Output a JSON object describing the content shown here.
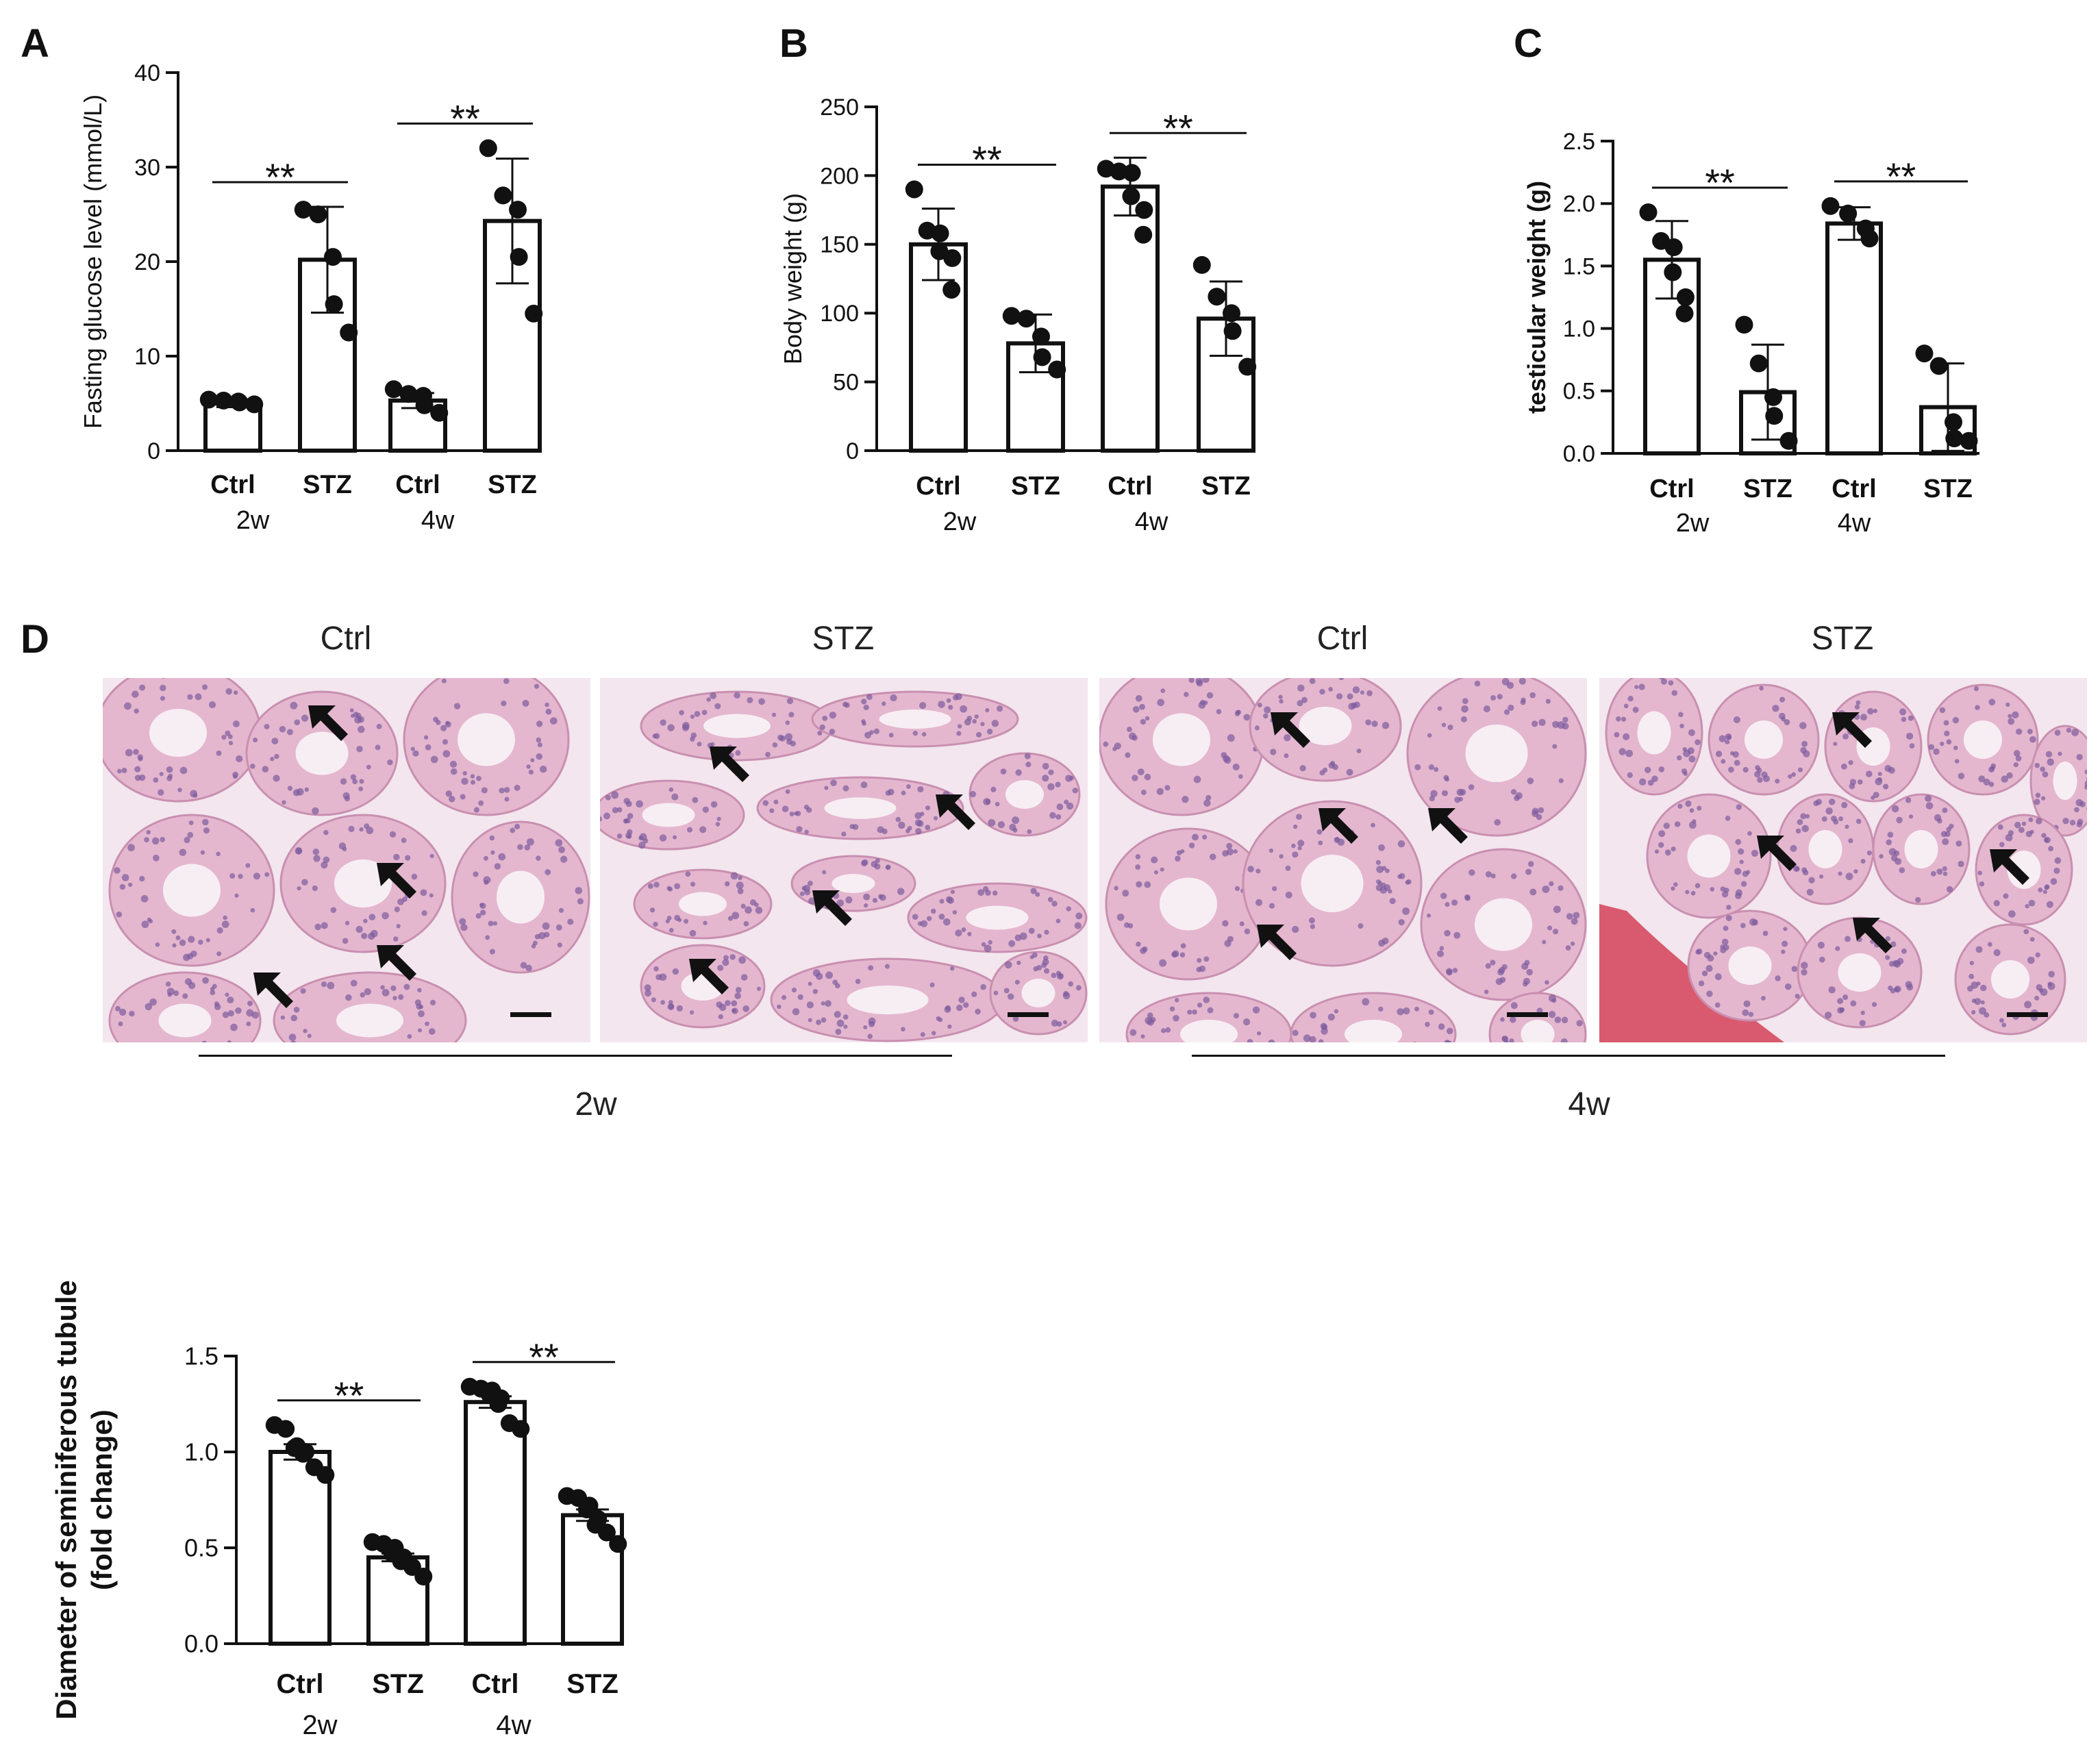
{
  "panels": {
    "A": "A",
    "B": "B",
    "C": "C",
    "D": "D"
  },
  "chart_data": [
    {
      "id": "A",
      "type": "bar",
      "categories": [
        "Ctrl",
        "STZ",
        "Ctrl",
        "STZ"
      ],
      "groups": [
        "2w",
        "4w"
      ],
      "ylabel": "Fasting glucose level (mmol/L)",
      "ylim": [
        0,
        40
      ],
      "yticks": [
        0,
        10,
        20,
        30,
        40
      ],
      "means": [
        5.0,
        20.2,
        5.3,
        24.3
      ],
      "errors": [
        0.4,
        5.6,
        0.8,
        6.6
      ],
      "points": [
        [
          5.4,
          5.3,
          5.2,
          5.1,
          4.9
        ],
        [
          25.5,
          25.0,
          20.5,
          15.5,
          12.5
        ],
        [
          6.5,
          6.0,
          5.8,
          4.8,
          4.0
        ],
        [
          32.0,
          27.0,
          25.5,
          20.5,
          14.5
        ]
      ],
      "significance": [
        {
          "from": 0,
          "to": 1,
          "label": "**"
        },
        {
          "from": 2,
          "to": 3,
          "label": "**"
        }
      ]
    },
    {
      "id": "B",
      "type": "bar",
      "categories": [
        "Ctrl",
        "STZ",
        "Ctrl",
        "STZ"
      ],
      "groups": [
        "2w",
        "4w"
      ],
      "ylabel": "Body weight (g)",
      "ylim": [
        0,
        250
      ],
      "yticks": [
        0,
        50,
        100,
        150,
        200,
        250
      ],
      "means": [
        150,
        78,
        192,
        96
      ],
      "errors": [
        26,
        21,
        21,
        27
      ],
      "points": [
        [
          190,
          160,
          158,
          145,
          140,
          117
        ],
        [
          98,
          96,
          83,
          68,
          59
        ],
        [
          205,
          203,
          202,
          185,
          175,
          157
        ],
        [
          135,
          112,
          100,
          87,
          61
        ]
      ],
      "significance": [
        {
          "from": 0,
          "to": 1,
          "label": "**"
        },
        {
          "from": 2,
          "to": 3,
          "label": "**"
        }
      ]
    },
    {
      "id": "C",
      "type": "bar",
      "categories": [
        "Ctrl",
        "STZ",
        "Ctrl",
        "STZ"
      ],
      "groups": [
        "2w",
        "4w"
      ],
      "ylabel": "testicular weight (g)",
      "ylim": [
        0,
        2.5
      ],
      "yticks": [
        "0.0",
        "0.5",
        "1.0",
        "1.5",
        "2.0",
        "2.5"
      ],
      "means": [
        1.55,
        0.49,
        1.84,
        0.37
      ],
      "errors": [
        0.31,
        0.38,
        0.13,
        0.35
      ],
      "points": [
        [
          1.93,
          1.7,
          1.65,
          1.45,
          1.25,
          1.12
        ],
        [
          1.03,
          0.72,
          0.45,
          0.3,
          0.1
        ],
        [
          1.98,
          1.92,
          1.8,
          1.72
        ],
        [
          0.8,
          0.7,
          0.25,
          0.12,
          0.1
        ]
      ],
      "significance": [
        {
          "from": 0,
          "to": 1,
          "label": "**"
        },
        {
          "from": 2,
          "to": 3,
          "label": "**"
        }
      ]
    },
    {
      "id": "D",
      "type": "bar",
      "categories": [
        "Ctrl",
        "STZ",
        "Ctrl",
        "STZ"
      ],
      "groups": [
        "2w",
        "4w"
      ],
      "ylabel": [
        "Diameter of seminiferous tubule",
        "(fold change)"
      ],
      "ylim": [
        0,
        1.5
      ],
      "yticks": [
        "0.0",
        "0.5",
        "1.0",
        "1.5"
      ],
      "means": [
        1.0,
        0.45,
        1.26,
        0.67
      ],
      "errors": [
        0.04,
        0.02,
        0.03,
        0.03
      ],
      "points": [
        [
          1.14,
          1.12,
          1.03,
          1.02,
          1.0,
          0.99,
          0.92,
          0.88
        ],
        [
          0.53,
          0.52,
          0.5,
          0.47,
          0.45,
          0.43,
          0.4,
          0.35
        ],
        [
          1.34,
          1.33,
          1.32,
          1.3,
          1.28,
          1.25,
          1.15,
          1.12
        ],
        [
          0.77,
          0.76,
          0.72,
          0.7,
          0.65,
          0.62,
          0.58,
          0.52
        ]
      ],
      "significance": [
        {
          "from": 0,
          "to": 1,
          "label": "**"
        },
        {
          "from": 2,
          "to": 3,
          "label": "**"
        }
      ]
    }
  ],
  "histology": {
    "labels": [
      "Ctrl",
      "STZ",
      "Ctrl",
      "STZ"
    ],
    "periods": [
      "2w",
      "4w"
    ],
    "colors": {
      "background": "#f3e6ee",
      "tubule": "#e4b7cf",
      "lumen": "#f7eef3",
      "nuclei": "#7d5b9c",
      "vessel": "#d95a6e"
    }
  }
}
